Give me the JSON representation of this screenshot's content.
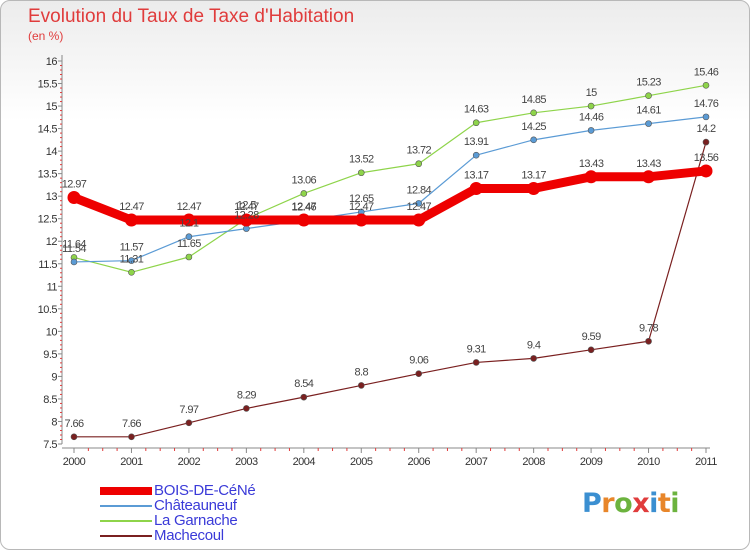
{
  "title": "Evolution du Taux de Taxe d'Habitation",
  "unit_label": "(en %)",
  "chart_data": {
    "type": "line",
    "title": "Evolution du Taux de Taxe d'Habitation",
    "ylabel": "(en %)",
    "xlabel": "",
    "ylim": [
      7.5,
      16
    ],
    "y_ticks": [
      "7.5",
      "8",
      "8.5",
      "9",
      "9.5",
      "10",
      "10.5",
      "11",
      "11.5",
      "12",
      "12.5",
      "13",
      "13.5",
      "14",
      "14.5",
      "15",
      "15.5",
      "16"
    ],
    "categories": [
      "2000",
      "2001",
      "2002",
      "2003",
      "2004",
      "2005",
      "2006",
      "2007",
      "2008",
      "2009",
      "2010",
      "2011"
    ],
    "series": [
      {
        "name": "BOIS-DE-CéNé",
        "color": "#ee0000",
        "values": [
          12.97,
          12.47,
          12.47,
          12.47,
          12.47,
          12.47,
          12.47,
          13.17,
          13.17,
          13.43,
          13.43,
          13.56
        ],
        "labels": [
          "12.97",
          "12.47",
          "12.47",
          "12.47",
          "12.47",
          "12.47",
          "12.47",
          "13.17",
          "13.17",
          "13.43",
          "13.43",
          "13.56"
        ]
      },
      {
        "name": "Châteauneuf",
        "color": "#5b9bd5",
        "values": [
          11.54,
          11.57,
          12.1,
          12.28,
          12.46,
          12.65,
          12.84,
          13.91,
          14.25,
          14.46,
          14.61,
          14.76
        ],
        "labels": [
          "11.54",
          "11.57",
          "12.1",
          "12.28",
          "12.46",
          "12.65",
          "12.84",
          "13.91",
          "14.25",
          "14.46",
          "14.61",
          "14.76"
        ]
      },
      {
        "name": "La Garnache",
        "color": "#8ed44a",
        "values": [
          11.64,
          11.31,
          11.65,
          12.5,
          13.06,
          13.52,
          13.72,
          14.63,
          14.85,
          15,
          15.23,
          15.46
        ],
        "labels": [
          "11.64",
          "11.31",
          "11.65",
          "12.5",
          "13.06",
          "13.52",
          "13.72",
          "14.63",
          "14.85",
          "15",
          "15.23",
          "15.46"
        ]
      },
      {
        "name": "Machecoul",
        "color": "#7a2020",
        "values": [
          7.66,
          7.66,
          7.97,
          8.29,
          8.54,
          8.8,
          9.06,
          9.31,
          9.4,
          9.59,
          9.78,
          14.2
        ],
        "labels": [
          "7.66",
          "7.66",
          "7.97",
          "8.29",
          "8.54",
          "8.8",
          "9.06",
          "9.31",
          "9.4",
          "9.59",
          "9.78",
          "14.2"
        ]
      }
    ],
    "legend_position": "bottom-left",
    "grid": false
  },
  "legend": [
    {
      "name": "BOIS-DE-CéNé",
      "color": "#ee0000"
    },
    {
      "name": "Châteauneuf",
      "color": "#5b9bd5"
    },
    {
      "name": "La Garnache",
      "color": "#8ed44a"
    },
    {
      "name": "Machecoul",
      "color": "#7a2020"
    }
  ],
  "logo": {
    "text": "Proxiti",
    "letters": [
      "P",
      "r",
      "o",
      "x",
      "i",
      "t",
      "i"
    ],
    "colors": [
      "#3b8fd1",
      "#e8862a",
      "#6cb33e",
      "#e03c3c",
      "#3b8fd1",
      "#e8862a",
      "#6cb33e"
    ]
  }
}
